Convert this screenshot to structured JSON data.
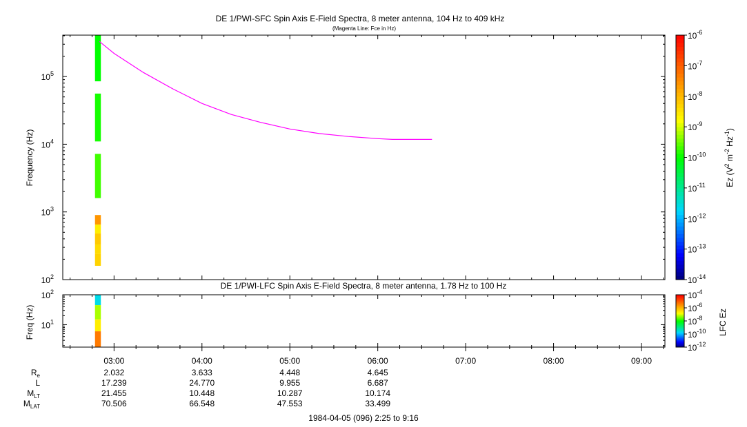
{
  "chart_data": [
    {
      "type": "heatmap",
      "title": "DE 1/PWI-SFC  Spin Axis E-Field Spectra, 8 meter antenna, 104 Hz to 409 kHz",
      "subtitle": "(Magenta Line: Fce in Hz)",
      "ylabel": "Frequency (Hz)",
      "yscale": "log",
      "ylim": [
        100,
        409000
      ],
      "y_ticks": [
        {
          "value": 100,
          "base": "10",
          "exp": "2"
        },
        {
          "value": 1000,
          "base": "10",
          "exp": "3"
        },
        {
          "value": 10000,
          "base": "10",
          "exp": "4"
        },
        {
          "value": 100000,
          "base": "10",
          "exp": "5"
        }
      ],
      "xlim": [
        "02:25",
        "09:16"
      ],
      "colorbar": {
        "label_parts": [
          "Ez (V",
          "2",
          " m",
          "-2",
          " Hz",
          "-1",
          ")"
        ],
        "scale": "log",
        "range": [
          1e-14,
          1e-06
        ],
        "ticks": [
          {
            "value": 1e-06,
            "base": "10",
            "exp": "-6"
          },
          {
            "value": 1e-07,
            "base": "10",
            "exp": "-7"
          },
          {
            "value": 1e-08,
            "base": "10",
            "exp": "-8"
          },
          {
            "value": 1e-09,
            "base": "10",
            "exp": "-9"
          },
          {
            "value": 1e-10,
            "base": "10",
            "exp": "-10"
          },
          {
            "value": 1e-11,
            "base": "10",
            "exp": "-11"
          },
          {
            "value": 1e-12,
            "base": "10",
            "exp": "-12"
          },
          {
            "value": 1e-13,
            "base": "10",
            "exp": "-13"
          },
          {
            "value": 1e-14,
            "base": "10",
            "exp": "-14"
          }
        ]
      },
      "cells": [
        {
          "t0": "02:47",
          "t1": "02:51",
          "f0": 85000,
          "f1": 409000,
          "log_ez": -10
        },
        {
          "t0": "02:47",
          "t1": "02:51",
          "f0": 11000,
          "f1": 56000,
          "log_ez": -9.9
        },
        {
          "t0": "02:47",
          "t1": "02:51",
          "f0": 1600,
          "f1": 7200,
          "log_ez": -9.7
        },
        {
          "t0": "02:47",
          "t1": "02:51",
          "f0": 650,
          "f1": 900,
          "log_ez": -7.6
        },
        {
          "t0": "02:47",
          "t1": "02:51",
          "f0": 480,
          "f1": 650,
          "log_ez": -8.6
        },
        {
          "t0": "02:47",
          "t1": "02:51",
          "f0": 330,
          "f1": 480,
          "log_ez": -8.2
        },
        {
          "t0": "02:47",
          "t1": "02:51",
          "f0": 240,
          "f1": 330,
          "log_ez": -8.4
        },
        {
          "t0": "02:47",
          "t1": "02:51",
          "f0": 160,
          "f1": 240,
          "log_ez": -8.3
        }
      ],
      "series": [
        {
          "name": "Fce",
          "color": "#ff00ff",
          "x": [
            "02:50",
            "03:00",
            "03:20",
            "03:40",
            "04:00",
            "04:20",
            "04:40",
            "05:00",
            "05:20",
            "05:40",
            "06:00",
            "06:10",
            "06:30",
            "06:37"
          ],
          "y": [
            330000,
            220000,
            115000,
            66000,
            40000,
            27500,
            21000,
            16800,
            14400,
            13000,
            12100,
            11800,
            11800,
            11800
          ]
        }
      ]
    },
    {
      "type": "heatmap",
      "title": "DE 1/PWI-LFC  Spin Axis E-Field Spectra, 8 meter antenna, 1.78 Hz to 100 Hz",
      "ylabel": "Freq (Hz)",
      "yscale": "log",
      "ylim": [
        1.78,
        100
      ],
      "y_ticks": [
        {
          "value": 10,
          "base": "10",
          "exp": "1"
        },
        {
          "value": 100,
          "base": "10",
          "exp": "2"
        }
      ],
      "xlim": [
        "02:25",
        "09:16"
      ],
      "colorbar": {
        "label": "LFC Ez",
        "scale": "log",
        "range": [
          1e-12,
          0.0001
        ],
        "ticks": [
          {
            "value": 0.0001,
            "base": "10",
            "exp": "-4"
          },
          {
            "value": 1e-06,
            "base": "10",
            "exp": "-6"
          },
          {
            "value": 1e-08,
            "base": "10",
            "exp": "-8"
          },
          {
            "value": 1e-10,
            "base": "10",
            "exp": "-10"
          },
          {
            "value": 1e-12,
            "base": "10",
            "exp": "-12"
          }
        ]
      },
      "cells": [
        {
          "t0": "02:47",
          "t1": "02:51",
          "f0": 45,
          "f1": 100,
          "log_ez": -9.6
        },
        {
          "t0": "02:47",
          "t1": "02:51",
          "f0": 15,
          "f1": 45,
          "log_ez": -7.2
        },
        {
          "t0": "02:47",
          "t1": "02:51",
          "f0": 6,
          "f1": 15,
          "log_ez": -6.6
        },
        {
          "t0": "02:47",
          "t1": "02:51",
          "f0": 1.78,
          "f1": 6,
          "log_ez": -5.3
        }
      ]
    }
  ],
  "time_axis": {
    "ticks": [
      "03:00",
      "04:00",
      "05:00",
      "06:00",
      "07:00",
      "08:00",
      "09:00"
    ]
  },
  "ephemeris": {
    "rows": [
      {
        "label": "R",
        "sub": "e",
        "values": [
          "2.032",
          "3.633",
          "4.448",
          "4.645"
        ]
      },
      {
        "label": "L",
        "sub": "",
        "values": [
          "17.239",
          "24.770",
          "9.955",
          "6.687"
        ]
      },
      {
        "label": "M",
        "sub": "LT",
        "values": [
          "21.455",
          "10.448",
          "10.287",
          "10.174"
        ]
      },
      {
        "label": "M",
        "sub": "LAT",
        "values": [
          "70.506",
          "66.548",
          "47.553",
          "33.499"
        ]
      }
    ]
  },
  "footer": "1984-04-05 (096) 2:25 to 9:16"
}
